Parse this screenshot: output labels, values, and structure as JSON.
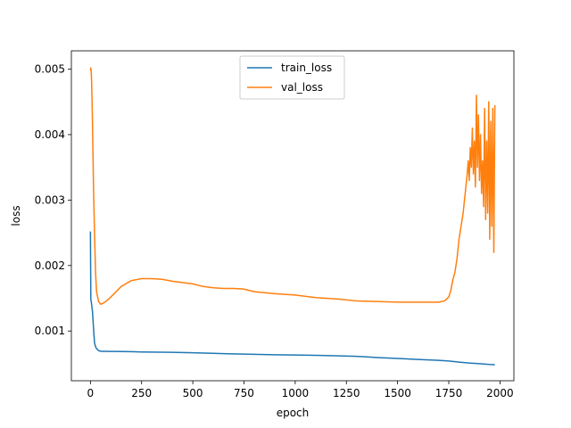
{
  "chart_data": {
    "type": "line",
    "title": "",
    "xlabel": "epoch",
    "ylabel": "loss",
    "xlim": [
      -93,
      2068
    ],
    "ylim": [
      0.00024,
      0.00528
    ],
    "xticks": [
      0,
      250,
      500,
      750,
      1000,
      1250,
      1500,
      1750,
      2000
    ],
    "xtick_labels": [
      "0",
      "250",
      "500",
      "750",
      "1000",
      "1250",
      "1500",
      "1750",
      "2000"
    ],
    "yticks": [
      0.001,
      0.002,
      0.003,
      0.004,
      0.005
    ],
    "ytick_labels": [
      "0.001",
      "0.002",
      "0.003",
      "0.004",
      "0.005"
    ],
    "grid": false,
    "legend": "upper center",
    "series": [
      {
        "name": "train_loss",
        "color": "#1f77b4",
        "x": [
          0,
          2,
          4,
          6,
          8,
          10,
          15,
          20,
          25,
          30,
          40,
          50,
          75,
          100,
          150,
          200,
          250,
          300,
          400,
          500,
          600,
          700,
          800,
          900,
          1000,
          1100,
          1200,
          1300,
          1350,
          1400,
          1500,
          1600,
          1700,
          1750,
          1800,
          1850,
          1900,
          1950,
          1975
        ],
        "y": [
          0.00252,
          0.00148,
          0.00145,
          0.0014,
          0.00135,
          0.0013,
          0.00105,
          0.00082,
          0.00076,
          0.00073,
          0.0007,
          0.00069,
          0.00069,
          0.000688,
          0.000686,
          0.000684,
          0.00068,
          0.000678,
          0.000675,
          0.000668,
          0.000658,
          0.00065,
          0.000643,
          0.000637,
          0.000633,
          0.000628,
          0.000622,
          0.000613,
          0.000605,
          0.000595,
          0.00058,
          0.000565,
          0.000552,
          0.000542,
          0.000525,
          0.00051,
          0.0005,
          0.000488,
          0.000485
        ]
      },
      {
        "name": "val_loss",
        "color": "#ff7f0e",
        "x": [
          0,
          2,
          4,
          6,
          8,
          10,
          12,
          15,
          20,
          25,
          30,
          40,
          50,
          60,
          75,
          100,
          150,
          200,
          250,
          300,
          350,
          400,
          450,
          500,
          550,
          600,
          650,
          700,
          750,
          800,
          900,
          1000,
          1100,
          1200,
          1300,
          1400,
          1500,
          1600,
          1700,
          1730,
          1750,
          1760,
          1770,
          1780,
          1790,
          1800,
          1810,
          1820,
          1830,
          1840,
          1845,
          1850,
          1855,
          1860,
          1865,
          1870,
          1875,
          1880,
          1885,
          1890,
          1895,
          1900,
          1905,
          1910,
          1915,
          1920,
          1925,
          1930,
          1935,
          1940,
          1945,
          1950,
          1955,
          1960,
          1965,
          1970,
          1975
        ],
        "y": [
          0.00498,
          0.00502,
          0.00495,
          0.0048,
          0.0045,
          0.0042,
          0.0038,
          0.0032,
          0.0025,
          0.0019,
          0.0016,
          0.00145,
          0.00141,
          0.00142,
          0.00145,
          0.00152,
          0.00168,
          0.00177,
          0.0018,
          0.0018,
          0.00179,
          0.00176,
          0.00174,
          0.00172,
          0.00168,
          0.00166,
          0.00165,
          0.00165,
          0.00164,
          0.0016,
          0.00157,
          0.00155,
          0.00151,
          0.00149,
          0.00146,
          0.00145,
          0.00144,
          0.00144,
          0.00144,
          0.00146,
          0.00152,
          0.00162,
          0.00178,
          0.0019,
          0.0021,
          0.0024,
          0.0026,
          0.0028,
          0.0031,
          0.0034,
          0.0036,
          0.0033,
          0.0038,
          0.0035,
          0.0041,
          0.0034,
          0.0039,
          0.0032,
          0.0046,
          0.0035,
          0.0043,
          0.0033,
          0.004,
          0.0031,
          0.0036,
          0.0029,
          0.0044,
          0.0027,
          0.0039,
          0.0028,
          0.0045,
          0.0024,
          0.0042,
          0.0026,
          0.0044,
          0.0022,
          0.00445
        ]
      }
    ]
  }
}
